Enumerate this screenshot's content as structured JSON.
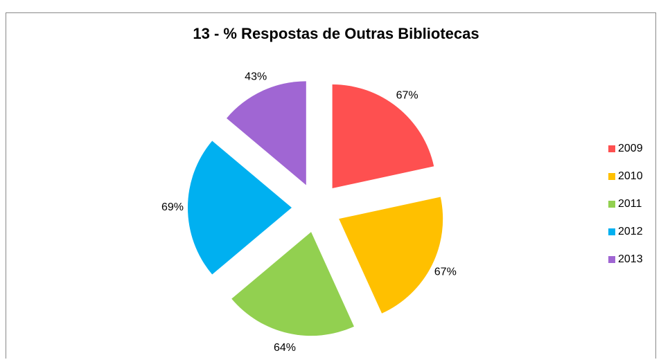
{
  "chart_data": {
    "type": "pie",
    "title": "13 - % Respostas de Outras Bibliotecas",
    "categories": [
      "2009",
      "2010",
      "2011",
      "2012",
      "2013"
    ],
    "values": [
      67,
      67,
      64,
      69,
      43
    ],
    "value_labels": [
      "67%",
      "67%",
      "64%",
      "69%",
      "43%"
    ],
    "colors": [
      "#fe5050",
      "#ffc000",
      "#92d050",
      "#00b0f0",
      "#a066d3"
    ],
    "legend": "right"
  }
}
